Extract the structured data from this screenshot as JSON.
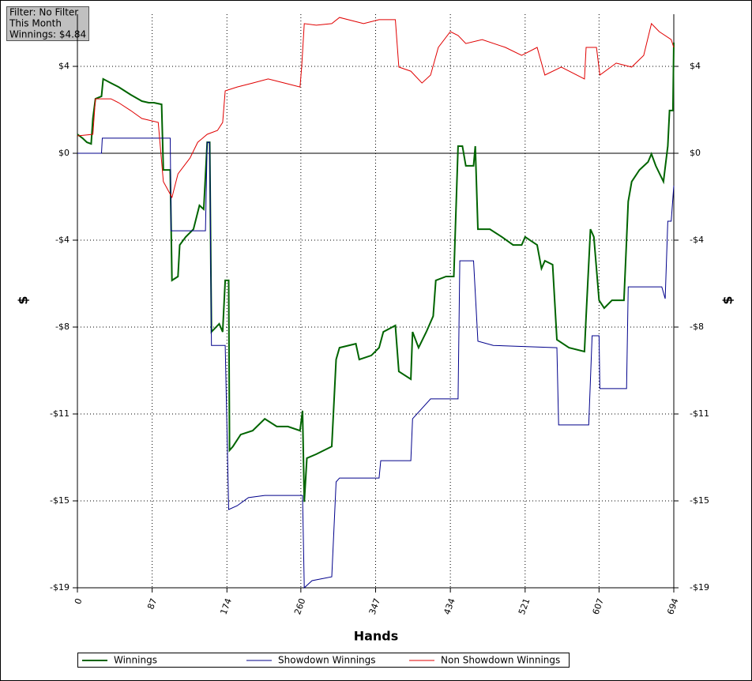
{
  "chart_data": {
    "type": "line",
    "annotations": [
      "Filter: No Filter",
      "This Month",
      "Winnings: $4.84"
    ],
    "xlabel": "Hands",
    "ylabel": "$",
    "xlim": [
      0,
      694
    ],
    "xticks": [
      0,
      87,
      174,
      260,
      347,
      434,
      521,
      607,
      694
    ],
    "ylim": [
      -19,
      6.08
    ],
    "yticks": [
      {
        "value": 3.8,
        "label": "$4"
      },
      {
        "value": 0,
        "label": "$0"
      },
      {
        "value": -3.8,
        "label": "-$4"
      },
      {
        "value": -7.6,
        "label": "-$8"
      },
      {
        "value": -11.4,
        "label": "-$11"
      },
      {
        "value": -15.2,
        "label": "-$15"
      },
      {
        "value": -19,
        "label": "-$19"
      }
    ],
    "grid": true,
    "series": [
      {
        "name": "Winnings",
        "color": "#006400",
        "x": [
          0,
          6,
          11,
          16,
          18,
          21,
          28,
          30,
          39,
          48,
          55,
          62,
          75,
          83,
          89,
          98,
          100,
          108,
          110,
          117,
          119,
          126,
          135,
          142,
          147,
          151,
          154,
          156,
          165,
          169,
          172,
          176,
          177,
          181,
          190,
          204,
          218,
          232,
          245,
          259,
          262,
          264,
          267,
          278,
          296,
          301,
          305,
          324,
          328,
          342,
          351,
          356,
          370,
          374,
          388,
          390,
          397,
          406,
          414,
          417,
          429,
          438,
          443,
          448,
          452,
          461,
          463,
          466,
          480,
          494,
          507,
          517,
          521,
          535,
          540,
          544,
          553,
          558,
          572,
          590,
          592,
          597,
          601,
          607,
          613,
          622,
          636,
          641,
          645,
          654,
          664,
          668,
          673,
          682,
          687,
          689,
          693,
          694
        ],
        "values": [
          0.83,
          0.66,
          0.48,
          0.41,
          1.52,
          2.38,
          2.49,
          3.25,
          3.07,
          2.9,
          2.73,
          2.56,
          2.28,
          2.21,
          2.21,
          2.14,
          -0.73,
          -0.73,
          -5.56,
          -5.39,
          -4.01,
          -3.66,
          -3.32,
          -2.28,
          -2.45,
          0.48,
          0.48,
          -7.81,
          -7.46,
          -7.81,
          -5.56,
          -5.56,
          -12.99,
          -12.82,
          -12.3,
          -12.13,
          -11.61,
          -11.95,
          -11.95,
          -12.13,
          -11.26,
          -15.24,
          -13.33,
          -13.16,
          -12.82,
          -9.02,
          -8.5,
          -8.33,
          -9.02,
          -8.84,
          -8.5,
          -7.81,
          -7.53,
          -9.54,
          -9.88,
          -7.81,
          -8.5,
          -7.81,
          -7.12,
          -5.56,
          -5.39,
          -5.39,
          0.31,
          0.31,
          -0.55,
          -0.55,
          0.31,
          -3.32,
          -3.32,
          -3.66,
          -4.01,
          -4.01,
          -3.66,
          -4.01,
          -5.04,
          -4.7,
          -4.87,
          -8.15,
          -8.5,
          -8.67,
          -7.12,
          -3.32,
          -3.66,
          -6.43,
          -6.77,
          -6.43,
          -6.43,
          -2.11,
          -1.24,
          -0.73,
          -0.38,
          -0.03,
          -0.55,
          -1.24,
          0.31,
          1.87,
          1.87,
          4.84
        ]
      },
      {
        "name": "Showdown Winnings",
        "color": "#00008b",
        "x": [
          0,
          28,
          29,
          108,
          109,
          149,
          151,
          154,
          156,
          172,
          176,
          186,
          199,
          218,
          262,
          264,
          273,
          296,
          301,
          305,
          351,
          353,
          388,
          390,
          411,
          443,
          445,
          461,
          466,
          484,
          558,
          560,
          595,
          599,
          607,
          608,
          639,
          641,
          680,
          684,
          687,
          691,
          694
        ],
        "values": [
          0,
          0,
          0.66,
          0.66,
          -3.39,
          -3.39,
          0.48,
          0.48,
          -8.4,
          -8.4,
          -15.58,
          -15.41,
          -15.06,
          -14.96,
          -14.96,
          -19,
          -18.69,
          -18.52,
          -14.37,
          -14.2,
          -14.2,
          -13.44,
          -13.44,
          -11.61,
          -10.74,
          -10.74,
          -4.7,
          -4.7,
          -8.22,
          -8.4,
          -8.5,
          -11.88,
          -11.88,
          -7.98,
          -7.98,
          -10.29,
          -10.29,
          -5.84,
          -5.84,
          -6.36,
          -2.97,
          -2.97,
          -1.42
        ]
      },
      {
        "name": "Non Showdown Winnings",
        "color": "#e00000",
        "x": [
          0,
          18,
          21,
          39,
          48,
          62,
          75,
          94,
          100,
          110,
          117,
          131,
          140,
          151,
          163,
          169,
          172,
          186,
          204,
          222,
          241,
          259,
          261,
          264,
          278,
          296,
          305,
          333,
          351,
          370,
          374,
          388,
          401,
          411,
          420,
          434,
          443,
          452,
          471,
          498,
          517,
          535,
          544,
          563,
          590,
          592,
          604,
          608,
          627,
          645,
          659,
          668,
          677,
          691,
          694
        ],
        "values": [
          0.76,
          0.83,
          2.38,
          2.38,
          2.21,
          1.87,
          1.52,
          1.35,
          -1.24,
          -1.93,
          -0.9,
          -0.21,
          0.48,
          0.83,
          1.0,
          1.35,
          2.73,
          2.9,
          3.07,
          3.25,
          3.07,
          2.9,
          3.77,
          5.67,
          5.6,
          5.67,
          5.94,
          5.67,
          5.84,
          5.84,
          3.77,
          3.59,
          3.07,
          3.42,
          4.63,
          5.32,
          5.15,
          4.8,
          4.97,
          4.63,
          4.28,
          4.63,
          3.42,
          3.77,
          3.25,
          4.63,
          4.63,
          3.42,
          3.94,
          3.77,
          4.28,
          5.67,
          5.32,
          4.97,
          4.63
        ]
      }
    ]
  }
}
